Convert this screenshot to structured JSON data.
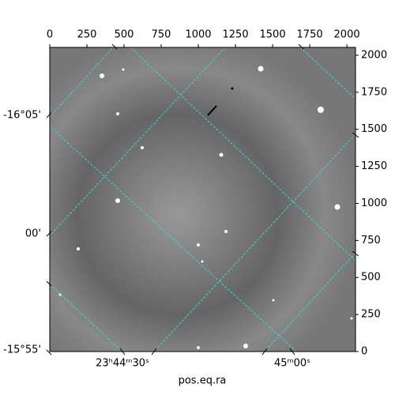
{
  "chart_data": {
    "type": "image",
    "xlabel": "pos.eq.ra",
    "xlim": [
      0,
      2058
    ],
    "xticks": [
      0,
      250,
      500,
      750,
      1000,
      1250,
      1500,
      1750,
      2000
    ],
    "ylim": [
      0,
      2053
    ],
    "yticks": [
      0,
      250,
      500,
      750,
      1000,
      1250,
      1500,
      1750,
      2000
    ],
    "ra_tick_labels": [
      "23ʰ44ᵐ30ˢ",
      "45ᵐ00ˢ"
    ],
    "dec_tick_labels": [
      "-16°05'",
      "00'",
      "-15°55'"
    ]
  }
}
